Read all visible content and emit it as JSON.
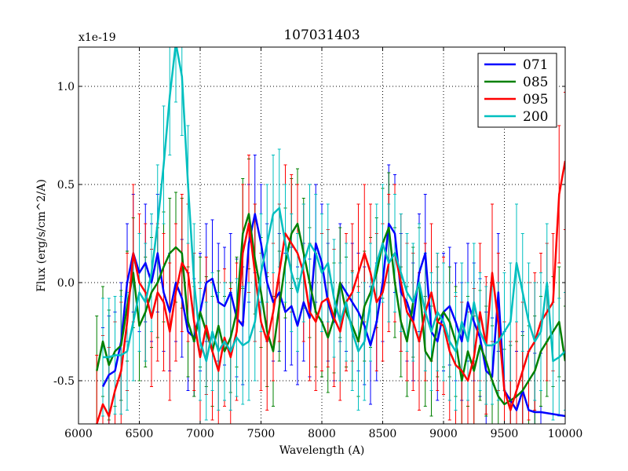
{
  "chart_data": {
    "type": "line",
    "title": "107031403",
    "xlabel": "Wavelength (A)",
    "ylabel": "Flux (erg/s/cm^2/A)",
    "y_offset_label": "x1e-19",
    "xlim": [
      6000,
      10000
    ],
    "ylim": [
      -0.72,
      1.2
    ],
    "x_ticks": [
      6000,
      6500,
      7000,
      7500,
      8000,
      8500,
      9000,
      9500,
      10000
    ],
    "x_tick_labels": [
      "6000",
      "6500",
      "7000",
      "7500",
      "8000",
      "8500",
      "9000",
      "9500",
      "10000"
    ],
    "y_ticks": [
      -0.5,
      0.0,
      0.5,
      1.0
    ],
    "y_tick_labels": [
      "-0.5",
      "0.0",
      "0.5",
      "1.0"
    ],
    "grid": true,
    "legend_position": "top-right",
    "series": [
      {
        "name": "071",
        "color": "#0000ff",
        "error": 0.3,
        "x": [
          6200,
          6250,
          6300,
          6350,
          6400,
          6450,
          6500,
          6550,
          6600,
          6650,
          6700,
          6750,
          6800,
          6850,
          6900,
          6950,
          7000,
          7050,
          7100,
          7150,
          7200,
          7250,
          7300,
          7350,
          7400,
          7450,
          7500,
          7550,
          7600,
          7650,
          7700,
          7750,
          7800,
          7850,
          7900,
          7950,
          8000,
          8050,
          8100,
          8150,
          8200,
          8250,
          8300,
          8350,
          8400,
          8450,
          8500,
          8550,
          8600,
          8650,
          8700,
          8750,
          8800,
          8850,
          8900,
          8950,
          9000,
          9050,
          9100,
          9150,
          9200,
          9250,
          9300,
          9350,
          9400,
          9450,
          9500,
          9550,
          9600,
          9650,
          9700,
          9750,
          9800,
          10000
        ],
        "y": [
          -0.53,
          -0.47,
          -0.45,
          -0.3,
          0.0,
          0.15,
          0.05,
          0.1,
          0.0,
          0.15,
          -0.05,
          -0.15,
          0.0,
          -0.08,
          -0.25,
          -0.28,
          -0.15,
          0.0,
          0.02,
          -0.1,
          -0.12,
          -0.05,
          -0.18,
          -0.22,
          0.2,
          0.35,
          0.2,
          0.0,
          -0.1,
          -0.05,
          -0.15,
          -0.12,
          -0.22,
          -0.1,
          -0.18,
          0.2,
          0.1,
          -0.1,
          -0.2,
          0.0,
          -0.05,
          -0.1,
          -0.15,
          -0.22,
          -0.32,
          -0.2,
          0.0,
          0.3,
          0.25,
          -0.05,
          -0.1,
          -0.2,
          0.05,
          0.15,
          -0.25,
          -0.3,
          -0.15,
          -0.12,
          -0.2,
          -0.3,
          -0.1,
          -0.2,
          -0.28,
          -0.45,
          -0.48,
          -0.05,
          -0.55,
          -0.6,
          -0.65,
          -0.55,
          -0.65,
          -0.66,
          -0.66,
          -0.68
        ]
      },
      {
        "name": "085",
        "color": "#008000",
        "error": 0.28,
        "x": [
          6150,
          6200,
          6250,
          6300,
          6350,
          6400,
          6450,
          6500,
          6550,
          6600,
          6650,
          6700,
          6750,
          6800,
          6850,
          6900,
          6950,
          7000,
          7050,
          7100,
          7150,
          7200,
          7250,
          7300,
          7350,
          7400,
          7450,
          7500,
          7550,
          7600,
          7650,
          7700,
          7750,
          7800,
          7850,
          7900,
          7950,
          8000,
          8050,
          8100,
          8150,
          8200,
          8250,
          8300,
          8350,
          8400,
          8450,
          8500,
          8550,
          8600,
          8650,
          8700,
          8750,
          8800,
          8850,
          8900,
          8950,
          9000,
          9050,
          9100,
          9150,
          9200,
          9250,
          9300,
          9350,
          9400,
          9450,
          9500,
          9550,
          9600,
          9650,
          9700,
          9750,
          9800,
          9850,
          9900,
          9950,
          10000
        ],
        "y": [
          -0.45,
          -0.3,
          -0.42,
          -0.35,
          -0.32,
          -0.12,
          0.05,
          -0.22,
          -0.15,
          -0.05,
          0.0,
          0.08,
          0.15,
          0.18,
          0.15,
          -0.2,
          -0.3,
          -0.15,
          -0.25,
          -0.35,
          -0.22,
          -0.35,
          -0.28,
          -0.15,
          0.25,
          0.35,
          0.12,
          -0.05,
          -0.25,
          -0.35,
          -0.12,
          0.1,
          0.25,
          0.3,
          0.15,
          0.0,
          -0.15,
          -0.2,
          -0.28,
          -0.18,
          0.0,
          -0.15,
          -0.22,
          -0.3,
          -0.12,
          -0.05,
          0.05,
          0.2,
          0.28,
          0.0,
          -0.2,
          -0.3,
          -0.1,
          0.0,
          -0.35,
          -0.4,
          -0.2,
          -0.15,
          -0.2,
          -0.3,
          -0.5,
          -0.35,
          -0.45,
          -0.32,
          -0.4,
          -0.5,
          -0.58,
          -0.62,
          -0.6,
          -0.58,
          -0.55,
          -0.5,
          -0.45,
          -0.35,
          -0.3,
          -0.25,
          -0.2,
          -0.4
        ]
      },
      {
        "name": "095",
        "color": "#ff0000",
        "error": 0.35,
        "x": [
          6150,
          6200,
          6250,
          6300,
          6350,
          6400,
          6450,
          6500,
          6550,
          6600,
          6650,
          6700,
          6750,
          6800,
          6850,
          6900,
          6950,
          7000,
          7050,
          7100,
          7150,
          7200,
          7250,
          7300,
          7350,
          7400,
          7450,
          7500,
          7550,
          7600,
          7650,
          7700,
          7750,
          7800,
          7850,
          7900,
          7950,
          8000,
          8050,
          8100,
          8150,
          8200,
          8250,
          8300,
          8350,
          8400,
          8450,
          8500,
          8550,
          8600,
          8650,
          8700,
          8750,
          8800,
          8850,
          8900,
          8950,
          9000,
          9050,
          9100,
          9150,
          9200,
          9250,
          9300,
          9350,
          9400,
          9450,
          9500,
          9550,
          9600,
          9650,
          9700,
          9750,
          9800,
          9850,
          9900,
          9950,
          10000
        ],
        "y": [
          -0.72,
          -0.62,
          -0.68,
          -0.55,
          -0.45,
          -0.2,
          0.15,
          0.0,
          -0.05,
          -0.18,
          -0.05,
          -0.1,
          -0.25,
          -0.05,
          0.1,
          0.05,
          -0.2,
          -0.38,
          -0.22,
          -0.35,
          -0.45,
          -0.28,
          -0.38,
          -0.25,
          0.15,
          0.3,
          0.05,
          -0.2,
          -0.3,
          -0.15,
          0.05,
          0.25,
          0.2,
          0.15,
          0.05,
          -0.15,
          -0.2,
          -0.1,
          -0.08,
          -0.18,
          -0.25,
          -0.1,
          -0.05,
          0.05,
          0.15,
          0.05,
          -0.1,
          -0.05,
          0.1,
          0.15,
          0.0,
          -0.15,
          -0.2,
          -0.3,
          -0.15,
          -0.05,
          -0.2,
          -0.22,
          -0.35,
          -0.42,
          -0.45,
          -0.5,
          -0.38,
          -0.15,
          -0.32,
          0.05,
          -0.2,
          -0.55,
          -0.65,
          -0.55,
          -0.45,
          -0.35,
          -0.3,
          -0.2,
          -0.15,
          -0.1,
          0.45,
          0.62
        ]
      },
      {
        "name": "200",
        "color": "#00bfbf",
        "error": 0.3,
        "x": [
          6200,
          6250,
          6300,
          6350,
          6400,
          6450,
          6500,
          6550,
          6600,
          6650,
          6700,
          6750,
          6800,
          6850,
          6900,
          6950,
          7000,
          7050,
          7100,
          7150,
          7200,
          7250,
          7300,
          7350,
          7400,
          7450,
          7500,
          7550,
          7600,
          7650,
          7700,
          7750,
          7800,
          7850,
          7900,
          7950,
          8000,
          8050,
          8100,
          8150,
          8200,
          8250,
          8300,
          8350,
          8400,
          8450,
          8500,
          8550,
          8600,
          8650,
          8700,
          8750,
          8800,
          8850,
          8900,
          8950,
          9000,
          9050,
          9100,
          9150,
          9200,
          9250,
          9300,
          9350,
          9400,
          9450,
          9500,
          9550,
          9600,
          9650,
          9700,
          9750,
          9800,
          9850,
          9900,
          9950,
          10000
        ],
        "y": [
          -0.38,
          -0.38,
          -0.37,
          -0.37,
          -0.35,
          -0.2,
          -0.05,
          -0.1,
          0.05,
          0.3,
          0.6,
          0.95,
          1.22,
          1.05,
          0.5,
          0.0,
          -0.3,
          -0.4,
          -0.25,
          -0.35,
          -0.3,
          -0.35,
          -0.28,
          -0.32,
          -0.3,
          -0.2,
          0.05,
          0.2,
          0.35,
          0.38,
          0.2,
          0.05,
          -0.05,
          0.1,
          0.2,
          0.15,
          0.05,
          0.1,
          -0.08,
          -0.2,
          -0.1,
          -0.25,
          -0.35,
          -0.3,
          -0.1,
          0.1,
          0.2,
          0.1,
          0.15,
          0.05,
          -0.05,
          -0.1,
          0.0,
          -0.15,
          -0.25,
          -0.15,
          -0.2,
          -0.3,
          -0.35,
          -0.2,
          -0.3,
          -0.1,
          -0.25,
          -0.32,
          -0.32,
          -0.3,
          -0.25,
          -0.2,
          0.1,
          -0.05,
          -0.2,
          -0.3,
          -0.25,
          0.0,
          -0.4,
          -0.38,
          -0.35
        ]
      }
    ]
  }
}
